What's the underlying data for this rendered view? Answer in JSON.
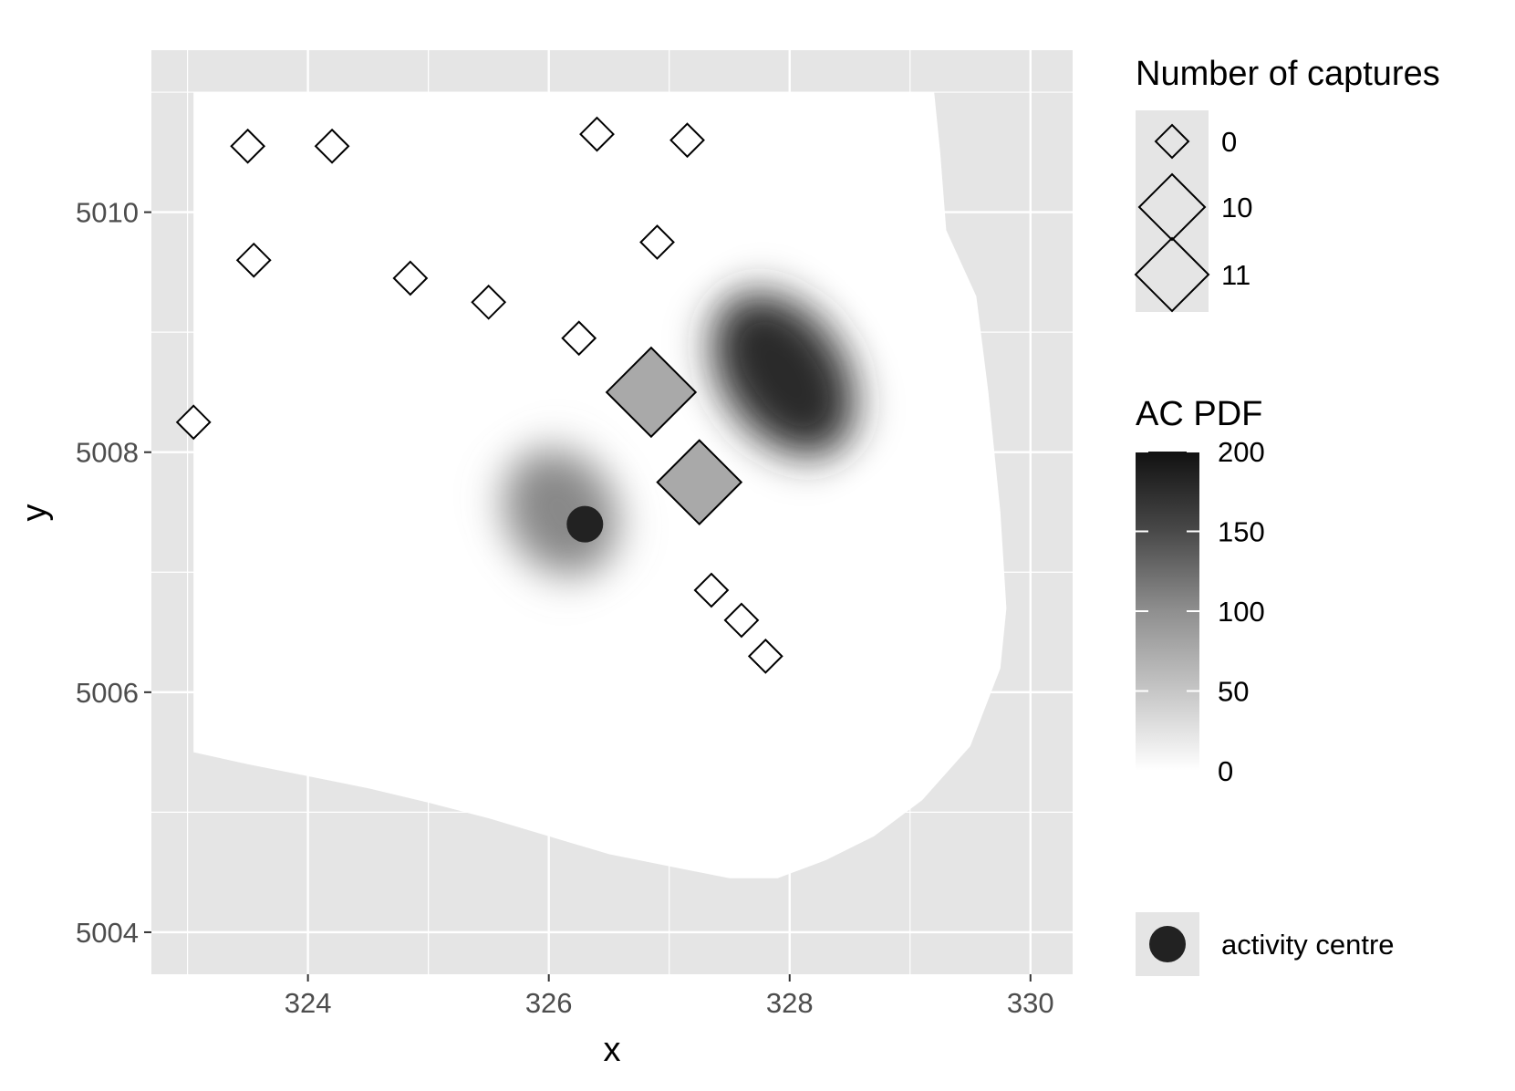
{
  "chart_data": {
    "type": "scatter",
    "xlabel": "x",
    "ylabel": "y",
    "xlim": [
      322.7,
      330.35
    ],
    "ylim": [
      5003.65,
      5011.35
    ],
    "x_ticks": [
      324,
      326,
      328,
      330
    ],
    "y_ticks": [
      5004,
      5006,
      5008,
      5010
    ],
    "x_tick_labels": [
      "324",
      "326",
      "328",
      "330"
    ],
    "y_tick_labels": [
      "5004",
      "5006",
      "5008",
      "5010"
    ],
    "grid": true,
    "panel_background": "#e5e5e5",
    "region_fill": "#ffffff",
    "region_boundary": [
      [
        323.05,
        5011.0
      ],
      [
        329.2,
        5011.0
      ],
      [
        329.25,
        5010.5
      ],
      [
        329.3,
        5009.85
      ],
      [
        329.55,
        5009.3
      ],
      [
        329.65,
        5008.5
      ],
      [
        329.75,
        5007.5
      ],
      [
        329.8,
        5006.7
      ],
      [
        329.75,
        5006.2
      ],
      [
        329.5,
        5005.55
      ],
      [
        329.1,
        5005.1
      ],
      [
        328.7,
        5004.8
      ],
      [
        328.3,
        5004.6
      ],
      [
        327.9,
        5004.45
      ],
      [
        327.5,
        5004.45
      ],
      [
        327.0,
        5004.55
      ],
      [
        326.5,
        5004.65
      ],
      [
        326.0,
        5004.8
      ],
      [
        325.5,
        5004.95
      ],
      [
        325.0,
        5005.08
      ],
      [
        324.5,
        5005.2
      ],
      [
        324.0,
        5005.3
      ],
      [
        323.5,
        5005.4
      ],
      [
        323.05,
        5005.5
      ]
    ],
    "legend_placement": "right",
    "series": [
      {
        "kind": "traps",
        "legend_title": "Number of captures",
        "marker": "diamond",
        "points": [
          {
            "x": 323.05,
            "y": 5008.25,
            "captures": 0
          },
          {
            "x": 323.5,
            "y": 5010.55,
            "captures": 0
          },
          {
            "x": 323.55,
            "y": 5009.6,
            "captures": 0
          },
          {
            "x": 324.2,
            "y": 5010.55,
            "captures": 0
          },
          {
            "x": 324.85,
            "y": 5009.45,
            "captures": 0
          },
          {
            "x": 325.5,
            "y": 5009.25,
            "captures": 0
          },
          {
            "x": 326.25,
            "y": 5008.95,
            "captures": 0
          },
          {
            "x": 326.4,
            "y": 5010.65,
            "captures": 0
          },
          {
            "x": 326.85,
            "y": 5008.5,
            "captures": 11
          },
          {
            "x": 326.9,
            "y": 5009.75,
            "captures": 0
          },
          {
            "x": 327.15,
            "y": 5010.6,
            "captures": 0
          },
          {
            "x": 327.25,
            "y": 5007.75,
            "captures": 10
          },
          {
            "x": 327.35,
            "y": 5006.85,
            "captures": 0
          },
          {
            "x": 327.6,
            "y": 5006.6,
            "captures": 0
          },
          {
            "x": 327.8,
            "y": 5006.3,
            "captures": 0
          }
        ],
        "legend_items": [
          {
            "label": "0",
            "value": 0
          },
          {
            "label": "10",
            "value": 10
          },
          {
            "label": "11",
            "value": 11
          }
        ]
      },
      {
        "kind": "density",
        "legend_title": "AC PDF",
        "range": [
          0,
          200
        ],
        "tick_labels": [
          "0",
          "50",
          "100",
          "150",
          "200"
        ],
        "tick_values": [
          0,
          50,
          100,
          150,
          200
        ],
        "blobs": [
          {
            "x": 327.95,
            "y": 5008.65,
            "peak": 180,
            "sx": 0.5,
            "sy": 0.75,
            "rotate_deg": -35
          },
          {
            "x": 326.1,
            "y": 5007.5,
            "peak": 100,
            "sx": 0.45,
            "sy": 0.55,
            "rotate_deg": -30
          }
        ]
      },
      {
        "kind": "activity_centre",
        "name": "activity centre",
        "points": [
          {
            "x": 326.3,
            "y": 5007.4
          }
        ]
      }
    ]
  }
}
